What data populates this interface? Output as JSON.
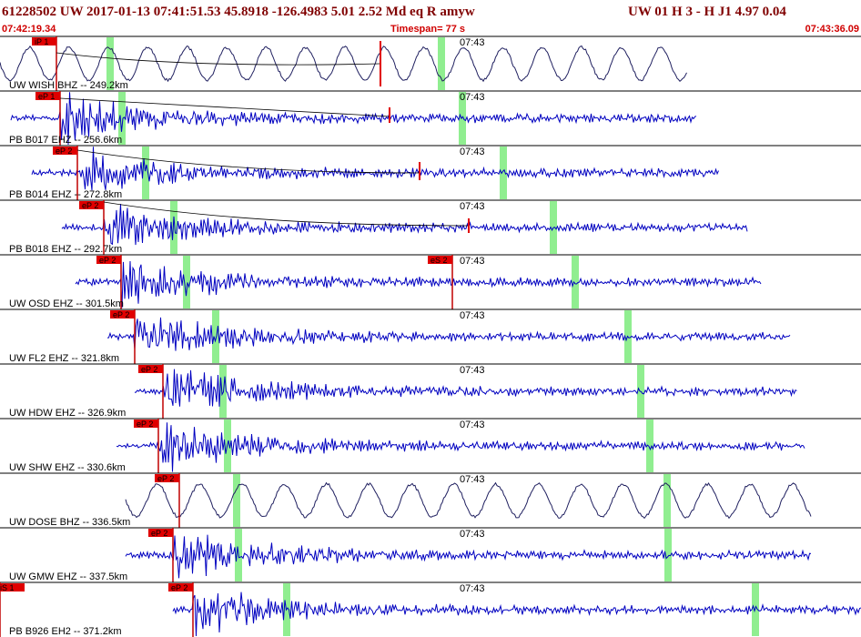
{
  "header": {
    "event": "61228502 UW 2017-01-13 07:41:51.53   45.8918 -126.4983   5.01  2.52 Md  eq  R amyw",
    "station": "UW 01  H  3  -  H J1    4.97  0.04",
    "start_time": "07:42:19.34",
    "timespan": "Timespan=  77 s",
    "end_time": "07:43:36.09"
  },
  "time_mark": "07:43",
  "traces": [
    {
      "label": "UW WISH BHZ -- 249.2km",
      "picks": [
        "iP 1"
      ]
    },
    {
      "label": "PB B017 EHZ -- 256.6km",
      "picks": [
        "eP 1"
      ]
    },
    {
      "label": "PB B014 EHZ -- 272.8km",
      "picks": [
        "eP 2"
      ]
    },
    {
      "label": "PB B018 EHZ -- 292.7km",
      "picks": [
        "eP 2"
      ]
    },
    {
      "label": "UW OSD EHZ -- 301.5km",
      "picks": [
        "eP 2",
        "eS 2"
      ]
    },
    {
      "label": "UW FL2 EHZ -- 321.8km",
      "picks": [
        "eP 2"
      ]
    },
    {
      "label": "UW HDW EHZ -- 326.9km",
      "picks": [
        "eP 2"
      ]
    },
    {
      "label": "UW SHW EHZ -- 330.6km",
      "picks": [
        "eP 2"
      ]
    },
    {
      "label": "UW DOSE BHZ -- 336.5km",
      "picks": [
        "eP 2"
      ]
    },
    {
      "label": "UW GMW EHZ -- 337.5km",
      "picks": [
        "eP 2"
      ]
    },
    {
      "label": "PB B926 EH2 -- 371.2km",
      "picks": [
        "eP 2",
        "iS 1"
      ]
    }
  ]
}
